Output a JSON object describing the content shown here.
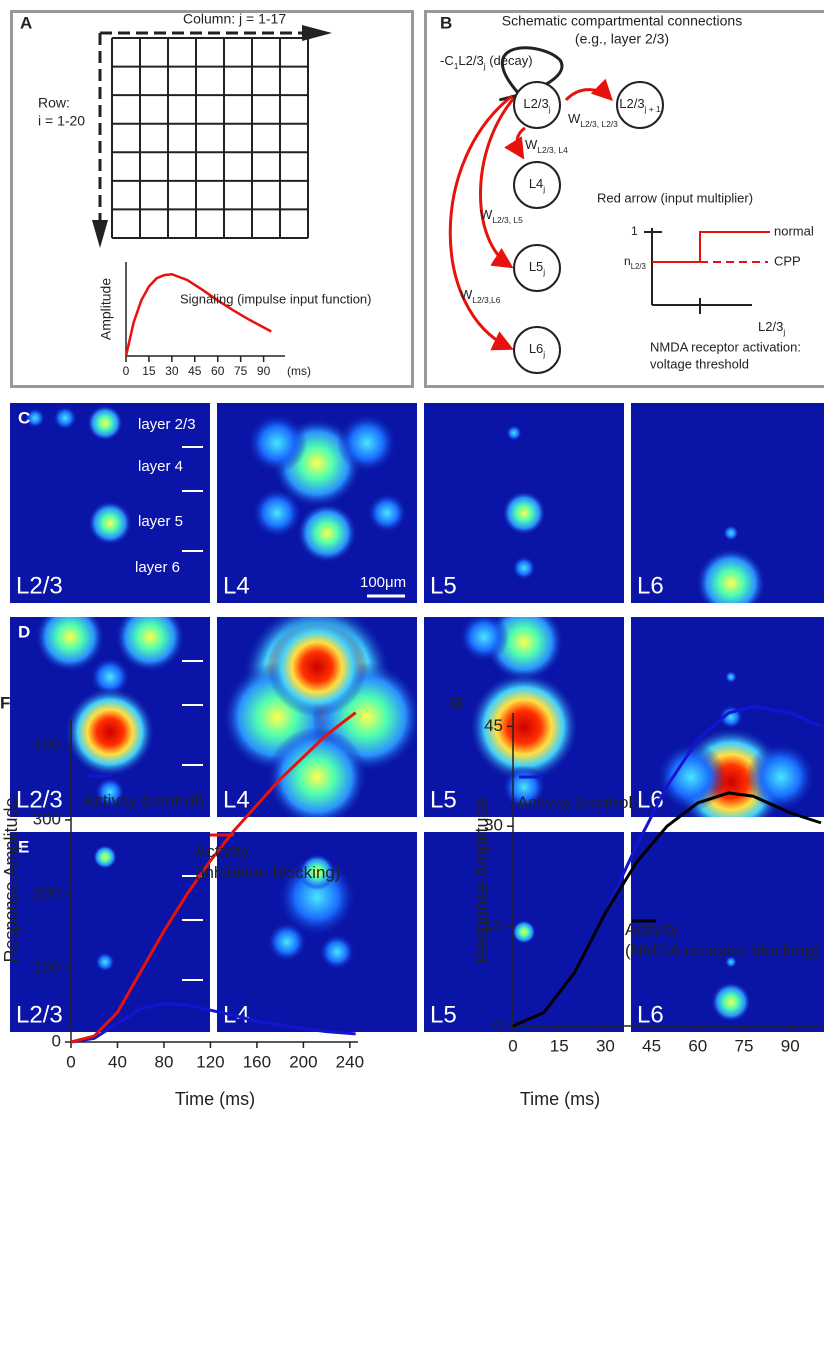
{
  "panel_a": {
    "label": "A",
    "column_label": "Column: j = 1-17",
    "row_label": "Row:",
    "row_range": "i = 1-20"
  },
  "panel_b": {
    "label": "B",
    "title": "Schematic compartmental connections",
    "subtitle": "(e.g., layer 2/3)",
    "decay": [
      "-C",
      {
        "sub": "1"
      },
      "L2/3",
      {
        "sub": "j"
      },
      " (decay)"
    ],
    "nodes": [
      [
        "L2/3",
        {
          "sub": "j"
        }
      ],
      [
        "L2/3",
        {
          "sub": "j + 1"
        }
      ],
      [
        "L4",
        {
          "sub": "j"
        }
      ],
      [
        "L5",
        {
          "sub": "j"
        }
      ],
      [
        "L6",
        {
          "sub": "j"
        }
      ]
    ],
    "weights": [
      [
        "W",
        {
          "sub": "L2/3, L2/3"
        }
      ],
      [
        "W",
        {
          "sub": "L2/3, L4"
        }
      ],
      [
        "W",
        {
          "sub": "L2/3, L5"
        }
      ],
      [
        "W",
        {
          "sub": "L2/3,L6"
        }
      ]
    ],
    "inset": {
      "title": "Red arrow (input multiplier)",
      "y_high": "1",
      "y_low": [
        "n",
        {
          "sub": "L2/3"
        }
      ],
      "normal": "normal",
      "cpp": "CPP",
      "x_label": [
        "L2/3",
        {
          "sub": "j"
        }
      ],
      "caption": [
        "NMDA receptor activation:",
        "voltage threshold"
      ]
    }
  },
  "heatmaps": {
    "rows": [
      {
        "label": "C",
        "columns": [
          "L2/3",
          "L4",
          "L5",
          "L6"
        ]
      },
      {
        "label": "D",
        "columns": [
          "L2/3",
          "L4",
          "L5",
          "L6"
        ]
      },
      {
        "label": "E",
        "columns": [
          "L2/3",
          "L4",
          "L5",
          "L6"
        ]
      }
    ],
    "layers": [
      "layer 2/3",
      "layer 4",
      "layer 5",
      "layer 6"
    ],
    "scale_bar": "100μm"
  },
  "chart_data": [
    {
      "type": "line",
      "title": "Signaling  (impulse input function)",
      "y_label": "Amplitude",
      "x_label": "(ms)",
      "x": [
        0,
        5,
        10,
        15,
        20,
        25,
        30,
        40,
        50,
        60,
        70,
        80,
        90,
        95
      ],
      "values": [
        0,
        0.41,
        0.68,
        0.85,
        0.95,
        0.99,
        1.0,
        0.93,
        0.81,
        0.68,
        0.56,
        0.45,
        0.35,
        0.3
      ],
      "color": "#e8120c",
      "xlim": [
        0,
        104
      ],
      "ylim": [
        0,
        1.15
      ],
      "xticks": [
        0,
        15,
        30,
        45,
        60,
        75,
        90
      ]
    },
    {
      "type": "line",
      "label": "F",
      "x_label": "Time (ms)",
      "y_label": "Response Amplitude",
      "x": [
        0,
        20,
        40,
        60,
        80,
        100,
        120,
        140,
        160,
        180,
        200,
        220,
        245
      ],
      "series": [
        {
          "name": "Activity (control)",
          "color": "#1414d2",
          "values": [
            0,
            5,
            25,
            45,
            52,
            50,
            43,
            36,
            28,
            23,
            18,
            14,
            11
          ]
        },
        {
          "name": "Activity\n(inhibition blocking)",
          "color": "#e8120c",
          "values": [
            0,
            8,
            40,
            95,
            150,
            200,
            245,
            285,
            320,
            355,
            385,
            415,
            445
          ]
        }
      ],
      "xlim": [
        0,
        247
      ],
      "ylim": [
        0,
        435
      ],
      "xticks": [
        0,
        40,
        80,
        120,
        160,
        200,
        240
      ],
      "yticks": [
        0,
        100,
        200,
        300,
        400
      ]
    },
    {
      "type": "line",
      "label": "G",
      "x_label": "Time (ms)",
      "y_label": "Response Amplitude",
      "x": [
        0,
        10,
        20,
        30,
        40,
        50,
        60,
        70,
        78,
        90,
        100
      ],
      "series": [
        {
          "name": "Activity (control)",
          "color": "#1414d2",
          "values": [
            0,
            2,
            8,
            17,
            27,
            36,
            43,
            47,
            48,
            47,
            45
          ]
        },
        {
          "name": "Activity\n(NMDA receptor blocking)",
          "color": "#000000",
          "values": [
            0,
            2,
            8,
            17,
            24.5,
            30,
            33.5,
            35,
            34.5,
            32,
            30.5
          ]
        }
      ],
      "xlim": [
        0,
        100
      ],
      "ylim": [
        0,
        47
      ],
      "xticks": [
        0,
        15,
        30,
        45,
        60,
        75,
        90
      ],
      "yticks": [
        0,
        15,
        30,
        45
      ]
    }
  ]
}
